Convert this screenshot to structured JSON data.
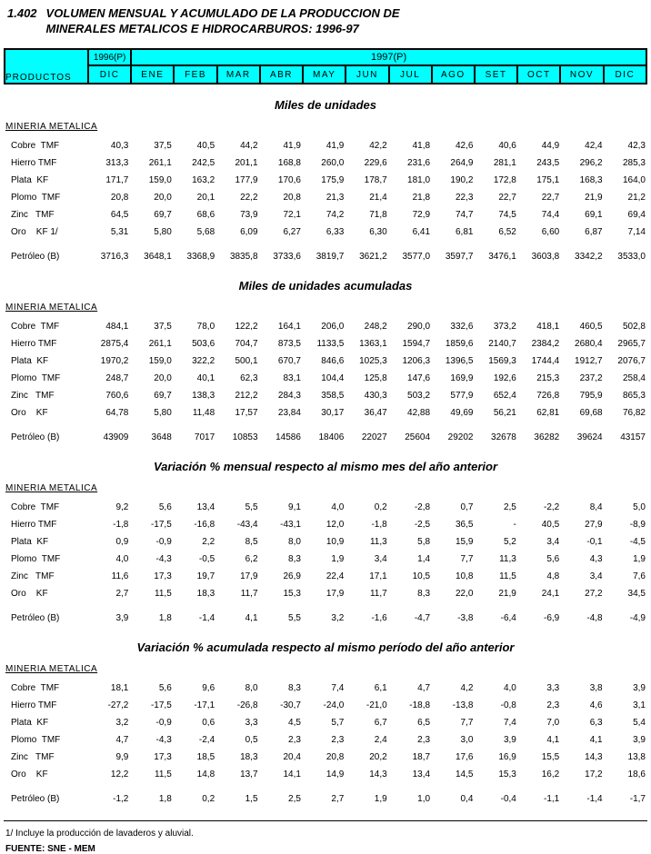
{
  "title": {
    "number": "1.402",
    "line1": "VOLUMEN MENSUAL Y ACUMULADO DE LA PRODUCCION DE",
    "line2": "MINERALES METALICOS E HIDROCARBUROS: 1996-97"
  },
  "table_header": {
    "products_label": "PRODUCTOS",
    "year_1996": "1996(P)",
    "year_1997": "1997(P)",
    "col_1996": "DIC",
    "months_1997": [
      "ENE",
      "FEB",
      "MAR",
      "ABR",
      "MAY",
      "JUN",
      "JUL",
      "AGO",
      "SET",
      "OCT",
      "NOV",
      "DIC"
    ]
  },
  "sections": [
    {
      "heading": "Miles de unidades",
      "group_label": "MINERIA METALICA",
      "rows": [
        {
          "label": "Cobre  TMF",
          "separated": false,
          "values": [
            "40,3",
            "37,5",
            "40,5",
            "44,2",
            "41,9",
            "41,9",
            "42,2",
            "41,8",
            "42,6",
            "40,6",
            "44,9",
            "42,4",
            "42,3"
          ]
        },
        {
          "label": "Hierro TMF",
          "separated": false,
          "values": [
            "313,3",
            "261,1",
            "242,5",
            "201,1",
            "168,8",
            "260,0",
            "229,6",
            "231,6",
            "264,9",
            "281,1",
            "243,5",
            "296,2",
            "285,3"
          ]
        },
        {
          "label": "Plata  KF",
          "separated": false,
          "values": [
            "171,7",
            "159,0",
            "163,2",
            "177,9",
            "170,6",
            "175,9",
            "178,7",
            "181,0",
            "190,2",
            "172,8",
            "175,1",
            "168,3",
            "164,0"
          ]
        },
        {
          "label": "Plomo  TMF",
          "separated": false,
          "values": [
            "20,8",
            "20,0",
            "20,1",
            "22,2",
            "20,8",
            "21,3",
            "21,4",
            "21,8",
            "22,3",
            "22,7",
            "22,7",
            "21,9",
            "21,2"
          ]
        },
        {
          "label": "Zinc   TMF",
          "separated": false,
          "values": [
            "64,5",
            "69,7",
            "68,6",
            "73,9",
            "72,1",
            "74,2",
            "71,8",
            "72,9",
            "74,7",
            "74,5",
            "74,4",
            "69,1",
            "69,4"
          ]
        },
        {
          "label": "Oro    KF 1/",
          "separated": false,
          "values": [
            "5,31",
            "5,80",
            "5,68",
            "6,09",
            "6,27",
            "6,33",
            "6,30",
            "6,41",
            "6,81",
            "6,52",
            "6,60",
            "6,87",
            "7,14"
          ]
        },
        {
          "label": "Petróleo (B)",
          "separated": true,
          "values": [
            "3716,3",
            "3648,1",
            "3368,9",
            "3835,8",
            "3733,6",
            "3819,7",
            "3621,2",
            "3577,0",
            "3597,7",
            "3476,1",
            "3603,8",
            "3342,2",
            "3533,0"
          ]
        }
      ]
    },
    {
      "heading": "Miles de unidades acumuladas",
      "group_label": "MINERIA METALICA",
      "rows": [
        {
          "label": "Cobre  TMF",
          "separated": false,
          "values": [
            "484,1",
            "37,5",
            "78,0",
            "122,2",
            "164,1",
            "206,0",
            "248,2",
            "290,0",
            "332,6",
            "373,2",
            "418,1",
            "460,5",
            "502,8"
          ]
        },
        {
          "label": "Hierro TMF",
          "separated": false,
          "values": [
            "2875,4",
            "261,1",
            "503,6",
            "704,7",
            "873,5",
            "1133,5",
            "1363,1",
            "1594,7",
            "1859,6",
            "2140,7",
            "2384,2",
            "2680,4",
            "2965,7"
          ]
        },
        {
          "label": "Plata  KF",
          "separated": false,
          "values": [
            "1970,2",
            "159,0",
            "322,2",
            "500,1",
            "670,7",
            "846,6",
            "1025,3",
            "1206,3",
            "1396,5",
            "1569,3",
            "1744,4",
            "1912,7",
            "2076,7"
          ]
        },
        {
          "label": "Plomo  TMF",
          "separated": false,
          "values": [
            "248,7",
            "20,0",
            "40,1",
            "62,3",
            "83,1",
            "104,4",
            "125,8",
            "147,6",
            "169,9",
            "192,6",
            "215,3",
            "237,2",
            "258,4"
          ]
        },
        {
          "label": "Zinc   TMF",
          "separated": false,
          "values": [
            "760,6",
            "69,7",
            "138,3",
            "212,2",
            "284,3",
            "358,5",
            "430,3",
            "503,2",
            "577,9",
            "652,4",
            "726,8",
            "795,9",
            "865,3"
          ]
        },
        {
          "label": "Oro    KF",
          "separated": false,
          "values": [
            "64,78",
            "5,80",
            "11,48",
            "17,57",
            "23,84",
            "30,17",
            "36,47",
            "42,88",
            "49,69",
            "56,21",
            "62,81",
            "69,68",
            "76,82"
          ]
        },
        {
          "label": "Petróleo (B)",
          "separated": true,
          "values": [
            "43909",
            "3648",
            "7017",
            "10853",
            "14586",
            "18406",
            "22027",
            "25604",
            "29202",
            "32678",
            "36282",
            "39624",
            "43157"
          ]
        }
      ]
    },
    {
      "heading": "Variación % mensual respecto al mismo mes del año anterior",
      "group_label": "MINERIA METALICA",
      "rows": [
        {
          "label": "Cobre  TMF",
          "separated": false,
          "values": [
            "9,2",
            "5,6",
            "13,4",
            "5,5",
            "9,1",
            "4,0",
            "0,2",
            "-2,8",
            "0,7",
            "2,5",
            "-2,2",
            "8,4",
            "5,0"
          ]
        },
        {
          "label": "Hierro TMF",
          "separated": false,
          "values": [
            "-1,8",
            "-17,5",
            "-16,8",
            "-43,4",
            "-43,1",
            "12,0",
            "-1,8",
            "-2,5",
            "36,5",
            "-",
            "40,5",
            "27,9",
            "-8,9"
          ]
        },
        {
          "label": "Plata  KF",
          "separated": false,
          "values": [
            "0,9",
            "-0,9",
            "2,2",
            "8,5",
            "8,0",
            "10,9",
            "11,3",
            "5,8",
            "15,9",
            "5,2",
            "3,4",
            "-0,1",
            "-4,5"
          ]
        },
        {
          "label": "Plomo  TMF",
          "separated": false,
          "values": [
            "4,0",
            "-4,3",
            "-0,5",
            "6,2",
            "8,3",
            "1,9",
            "3,4",
            "1,4",
            "7,7",
            "11,3",
            "5,6",
            "4,3",
            "1,9"
          ]
        },
        {
          "label": "Zinc   TMF",
          "separated": false,
          "values": [
            "11,6",
            "17,3",
            "19,7",
            "17,9",
            "26,9",
            "22,4",
            "17,1",
            "10,5",
            "10,8",
            "11,5",
            "4,8",
            "3,4",
            "7,6"
          ]
        },
        {
          "label": "Oro    KF",
          "separated": false,
          "values": [
            "2,7",
            "11,5",
            "18,3",
            "11,7",
            "15,3",
            "17,9",
            "11,7",
            "8,3",
            "22,0",
            "21,9",
            "24,1",
            "27,2",
            "34,5"
          ]
        },
        {
          "label": "Petróleo (B)",
          "separated": true,
          "values": [
            "3,9",
            "1,8",
            "-1,4",
            "4,1",
            "5,5",
            "3,2",
            "-1,6",
            "-4,7",
            "-3,8",
            "-6,4",
            "-6,9",
            "-4,8",
            "-4,9"
          ]
        }
      ]
    },
    {
      "heading": "Variación % acumulada respecto al mismo período del año anterior",
      "group_label": "MINERIA METALICA",
      "rows": [
        {
          "label": "Cobre  TMF",
          "separated": false,
          "values": [
            "18,1",
            "5,6",
            "9,6",
            "8,0",
            "8,3",
            "7,4",
            "6,1",
            "4,7",
            "4,2",
            "4,0",
            "3,3",
            "3,8",
            "3,9"
          ]
        },
        {
          "label": "Hierro TMF",
          "separated": false,
          "values": [
            "-27,2",
            "-17,5",
            "-17,1",
            "-26,8",
            "-30,7",
            "-24,0",
            "-21,0",
            "-18,8",
            "-13,8",
            "-0,8",
            "2,3",
            "4,6",
            "3,1"
          ]
        },
        {
          "label": "Plata  KF",
          "separated": false,
          "values": [
            "3,2",
            "-0,9",
            "0,6",
            "3,3",
            "4,5",
            "5,7",
            "6,7",
            "6,5",
            "7,7",
            "7,4",
            "7,0",
            "6,3",
            "5,4"
          ]
        },
        {
          "label": "Plomo  TMF",
          "separated": false,
          "values": [
            "4,7",
            "-4,3",
            "-2,4",
            "0,5",
            "2,3",
            "2,3",
            "2,4",
            "2,3",
            "3,0",
            "3,9",
            "4,1",
            "4,1",
            "3,9"
          ]
        },
        {
          "label": "Zinc   TMF",
          "separated": false,
          "values": [
            "9,9",
            "17,3",
            "18,5",
            "18,3",
            "20,4",
            "20,8",
            "20,2",
            "18,7",
            "17,6",
            "16,9",
            "15,5",
            "14,3",
            "13,8"
          ]
        },
        {
          "label": "Oro    KF",
          "separated": false,
          "values": [
            "12,2",
            "11,5",
            "14,8",
            "13,7",
            "14,1",
            "14,9",
            "14,3",
            "13,4",
            "14,5",
            "15,3",
            "16,2",
            "17,2",
            "18,6"
          ]
        },
        {
          "label": "Petróleo (B)",
          "separated": true,
          "values": [
            "-1,2",
            "1,8",
            "0,2",
            "1,5",
            "2,5",
            "2,7",
            "1,9",
            "1,0",
            "0,4",
            "-0,4",
            "-1,1",
            "-1,4",
            "-1,7"
          ]
        }
      ]
    }
  ],
  "footnotes": {
    "note1": "1/ Incluye la producción de lavaderos y aluvial.",
    "source": "FUENTE: SNE - MEM"
  },
  "colors": {
    "header_background": "#00ffff",
    "border": "#000000",
    "text": "#000000"
  }
}
